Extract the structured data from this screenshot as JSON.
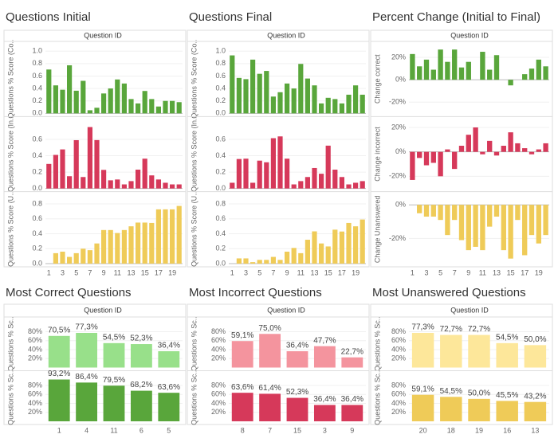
{
  "chart_data": [
    {
      "type": "bar",
      "title": "Questions Initial",
      "x_label": "Question ID",
      "categories": [
        1,
        null,
        3,
        null,
        5,
        null,
        7,
        null,
        9,
        null,
        11,
        null,
        13,
        null,
        15,
        null,
        17,
        null,
        19,
        null
      ],
      "panels": [
        {
          "y_label": "Questions % Score (Co..",
          "color": "#59a63b",
          "ylim": [
            0,
            1.08
          ],
          "yticks": [
            {
              "value": 0,
              "label": "0.0"
            },
            {
              "value": 0.2,
              "label": "0.2"
            },
            {
              "value": 0.4,
              "label": "0.4"
            },
            {
              "value": 0.6,
              "label": "0.6"
            },
            {
              "value": 0.8,
              "label": "0.8"
            },
            {
              "value": 1,
              "label": "1.0"
            }
          ],
          "values": [
            0.705,
            0.45,
            0.38,
            0.773,
            0.364,
            0.523,
            0.05,
            0.09,
            0.32,
            0.4,
            0.545,
            0.48,
            0.23,
            0.16,
            0.36,
            0.23,
            0.11,
            0.2,
            0.2,
            0.18
          ]
        },
        {
          "y_label": "Questions % Score (In..",
          "color": "#d6395a",
          "ylim": [
            0,
            0.82
          ],
          "yticks": [
            {
              "value": 0,
              "label": "0.0"
            },
            {
              "value": 0.2,
              "label": "0.2"
            },
            {
              "value": 0.4,
              "label": "0.4"
            },
            {
              "value": 0.6,
              "label": "0.6"
            }
          ],
          "values": [
            0.3,
            0.41,
            0.477,
            0.15,
            0.59,
            0.14,
            0.75,
            0.591,
            0.227,
            0.1,
            0.11,
            0.05,
            0.09,
            0.23,
            0.364,
            0.16,
            0.11,
            0.07,
            0.05,
            0.05
          ]
        },
        {
          "y_label": "Questions % Score (U..",
          "color": "#efcb58",
          "ylim": [
            0,
            0.9
          ],
          "yticks": [
            {
              "value": 0,
              "label": "0.0"
            },
            {
              "value": 0.2,
              "label": "0.2"
            },
            {
              "value": 0.4,
              "label": "0.4"
            },
            {
              "value": 0.6,
              "label": "0.6"
            },
            {
              "value": 0.8,
              "label": "0.8"
            }
          ],
          "values": [
            0,
            0.14,
            0.16,
            0.09,
            0.14,
            0.2,
            0.18,
            0.27,
            0.45,
            0.45,
            0.41,
            0.45,
            0.5,
            0.55,
            0.55,
            0.545,
            0.727,
            0.727,
            0.727,
            0.773
          ]
        }
      ]
    },
    {
      "type": "bar",
      "title": "Questions Final",
      "x_label": "Question ID",
      "categories": [
        1,
        null,
        3,
        null,
        5,
        null,
        7,
        null,
        9,
        null,
        11,
        null,
        13,
        null,
        15,
        null,
        17,
        null,
        19,
        null
      ],
      "panels": [
        {
          "y_label": "Questions % Score (Co..",
          "color": "#59a63b",
          "ylim": [
            0,
            1.08
          ],
          "yticks": [
            {
              "value": 0,
              "label": "0.0"
            },
            {
              "value": 0.2,
              "label": "0.2"
            },
            {
              "value": 0.4,
              "label": "0.4"
            },
            {
              "value": 0.6,
              "label": "0.6"
            },
            {
              "value": 0.8,
              "label": "0.8"
            },
            {
              "value": 1,
              "label": "1.0"
            }
          ],
          "values": [
            0.932,
            0.57,
            0.55,
            0.864,
            0.636,
            0.682,
            0.27,
            0.34,
            0.48,
            0.4,
            0.795,
            0.56,
            0.45,
            0.16,
            0.25,
            0.23,
            0.16,
            0.3,
            0.45,
            0.3
          ]
        },
        {
          "y_label": "Questions % Score (In..",
          "color": "#d6395a",
          "ylim": [
            0,
            0.82
          ],
          "yticks": [
            {
              "value": 0,
              "label": "0.0"
            },
            {
              "value": 0.2,
              "label": "0.2"
            },
            {
              "value": 0.4,
              "label": "0.4"
            },
            {
              "value": 0.6,
              "label": "0.6"
            }
          ],
          "values": [
            0.07,
            0.36,
            0.364,
            0.07,
            0.34,
            0.32,
            0.614,
            0.636,
            0.364,
            0.05,
            0.09,
            0.14,
            0.25,
            0.18,
            0.523,
            0.23,
            0.14,
            0.05,
            0.07,
            0.09
          ]
        },
        {
          "y_label": "Questions % Score (U..",
          "color": "#efcb58",
          "ylim": [
            0,
            0.9
          ],
          "yticks": [
            {
              "value": 0,
              "label": "0.0"
            },
            {
              "value": 0.2,
              "label": "0.2"
            },
            {
              "value": 0.4,
              "label": "0.4"
            },
            {
              "value": 0.6,
              "label": "0.6"
            },
            {
              "value": 0.8,
              "label": "0.8"
            }
          ],
          "values": [
            0,
            0.07,
            0.07,
            0.02,
            0.05,
            0.05,
            0.09,
            0.05,
            0.16,
            0.21,
            0.14,
            0.32,
            0.432,
            0.27,
            0.23,
            0.455,
            0.43,
            0.545,
            0.5,
            0.591
          ]
        }
      ]
    },
    {
      "type": "bar",
      "title": "Percent Change (Initial to Final)",
      "x_label": "Question ID",
      "categories": [
        1,
        null,
        3,
        null,
        5,
        null,
        7,
        null,
        9,
        null,
        11,
        null,
        13,
        null,
        15,
        null,
        17,
        null,
        19,
        null
      ],
      "panels": [
        {
          "y_label": "Change correct",
          "color": "#59a63b",
          "ylim": [
            -30,
            30
          ],
          "yticks": [
            {
              "value": 20,
              "label": "20%"
            },
            {
              "value": 0,
              "label": "0%"
            },
            {
              "value": -20,
              "label": "-20%"
            }
          ],
          "values": [
            23,
            12,
            18,
            9,
            27,
            16,
            27,
            11,
            16,
            0,
            25,
            9,
            22,
            0,
            -5,
            0,
            5,
            10,
            18,
            12
          ]
        },
        {
          "y_label": "Change incorrect",
          "color": "#d6395a",
          "ylim": [
            -30,
            25
          ],
          "yticks": [
            {
              "value": 20,
              "label": "20%"
            },
            {
              "value": 0,
              "label": "0%"
            },
            {
              "value": -20,
              "label": "-20%"
            }
          ],
          "values": [
            -23,
            -5,
            -11,
            -9,
            -20,
            2,
            -14,
            5,
            14,
            20,
            -2,
            9,
            -3,
            5,
            16,
            7,
            3,
            -2,
            2,
            7
          ]
        },
        {
          "y_label": "Change Unanswered",
          "color": "#efcb58",
          "ylim": [
            -35,
            5
          ],
          "yticks": [
            {
              "value": 0,
              "label": "0%"
            },
            {
              "value": -20,
              "label": "-20%"
            }
          ],
          "values": [
            0,
            -5,
            -7,
            -7,
            -9,
            -18,
            -9,
            -21,
            -27,
            -25,
            -27,
            -13,
            -7,
            -27,
            -32,
            -9,
            -30,
            -18,
            -23,
            -18
          ]
        }
      ]
    },
    {
      "type": "bar",
      "title": "Most Correct Questions",
      "x_label": "Question ID",
      "categories": [
        1,
        4,
        11,
        6,
        5
      ],
      "panels": [
        {
          "y_label": "Questions % Sc..",
          "color": "#98e08a",
          "ylim": [
            0,
            95
          ],
          "yticks": [
            {
              "value": 20,
              "label": "20%"
            },
            {
              "value": 40,
              "label": "40%"
            },
            {
              "value": 60,
              "label": "60%"
            },
            {
              "value": 80,
              "label": "80%"
            }
          ],
          "values": [
            70.5,
            77.3,
            54.5,
            52.3,
            36.4
          ],
          "value_labels": [
            "70,5%",
            "77,3%",
            "54,5%",
            "52,3%",
            "36,4%"
          ]
        },
        {
          "y_label": "Questions % Sc..",
          "color": "#59a63b",
          "ylim": [
            0,
            95
          ],
          "yticks": [
            {
              "value": 20,
              "label": "20%"
            },
            {
              "value": 40,
              "label": "40%"
            },
            {
              "value": 60,
              "label": "60%"
            },
            {
              "value": 80,
              "label": "80%"
            }
          ],
          "values": [
            93.2,
            86.4,
            79.5,
            68.2,
            63.6
          ],
          "value_labels": [
            "93,2%",
            "86,4%",
            "79,5%",
            "68,2%",
            "63,6%"
          ]
        }
      ]
    },
    {
      "type": "bar",
      "title": "Most Incorrect Questions",
      "x_label": "Question ID",
      "categories": [
        8,
        7,
        15,
        3,
        9
      ],
      "panels": [
        {
          "y_label": "Questions % Sc..",
          "color": "#f4949e",
          "ylim": [
            0,
            95
          ],
          "yticks": [
            {
              "value": 20,
              "label": "20%"
            },
            {
              "value": 40,
              "label": "40%"
            },
            {
              "value": 60,
              "label": "60%"
            },
            {
              "value": 80,
              "label": "80%"
            }
          ],
          "values": [
            59.1,
            75.0,
            36.4,
            47.7,
            22.7
          ],
          "value_labels": [
            "59,1%",
            "75,0%",
            "36,4%",
            "47,7%",
            "22,7%"
          ]
        },
        {
          "y_label": "Questions % Sc..",
          "color": "#d6395a",
          "ylim": [
            0,
            95
          ],
          "yticks": [
            {
              "value": 20,
              "label": "20%"
            },
            {
              "value": 40,
              "label": "40%"
            },
            {
              "value": 60,
              "label": "60%"
            },
            {
              "value": 80,
              "label": "80%"
            }
          ],
          "values": [
            63.6,
            61.4,
            52.3,
            36.4,
            36.4
          ],
          "value_labels": [
            "63,6%",
            "61,4%",
            "52,3%",
            "36,4%",
            "36,4%"
          ]
        }
      ]
    },
    {
      "type": "bar",
      "title": "Most Unanswered Questions",
      "x_label": "Question ID",
      "categories": [
        20,
        18,
        19,
        16,
        13
      ],
      "panels": [
        {
          "y_label": "Questions % Sc..",
          "color": "#fde79a",
          "ylim": [
            0,
            95
          ],
          "yticks": [
            {
              "value": 20,
              "label": "20%"
            },
            {
              "value": 40,
              "label": "40%"
            },
            {
              "value": 60,
              "label": "60%"
            },
            {
              "value": 80,
              "label": "80%"
            }
          ],
          "values": [
            77.3,
            72.7,
            72.7,
            54.5,
            50.0
          ],
          "value_labels": [
            "77,3%",
            "72,7%",
            "72,7%",
            "54,5%",
            "50,0%"
          ]
        },
        {
          "y_label": "Questions % Sc..",
          "color": "#efcb58",
          "ylim": [
            0,
            95
          ],
          "yticks": [
            {
              "value": 20,
              "label": "20%"
            },
            {
              "value": 40,
              "label": "40%"
            },
            {
              "value": 60,
              "label": "60%"
            },
            {
              "value": 80,
              "label": "80%"
            }
          ],
          "values": [
            59.1,
            54.5,
            50.0,
            45.5,
            43.2
          ],
          "value_labels": [
            "59,1%",
            "54,5%",
            "50,0%",
            "45,5%",
            "43,2%"
          ]
        }
      ]
    }
  ]
}
